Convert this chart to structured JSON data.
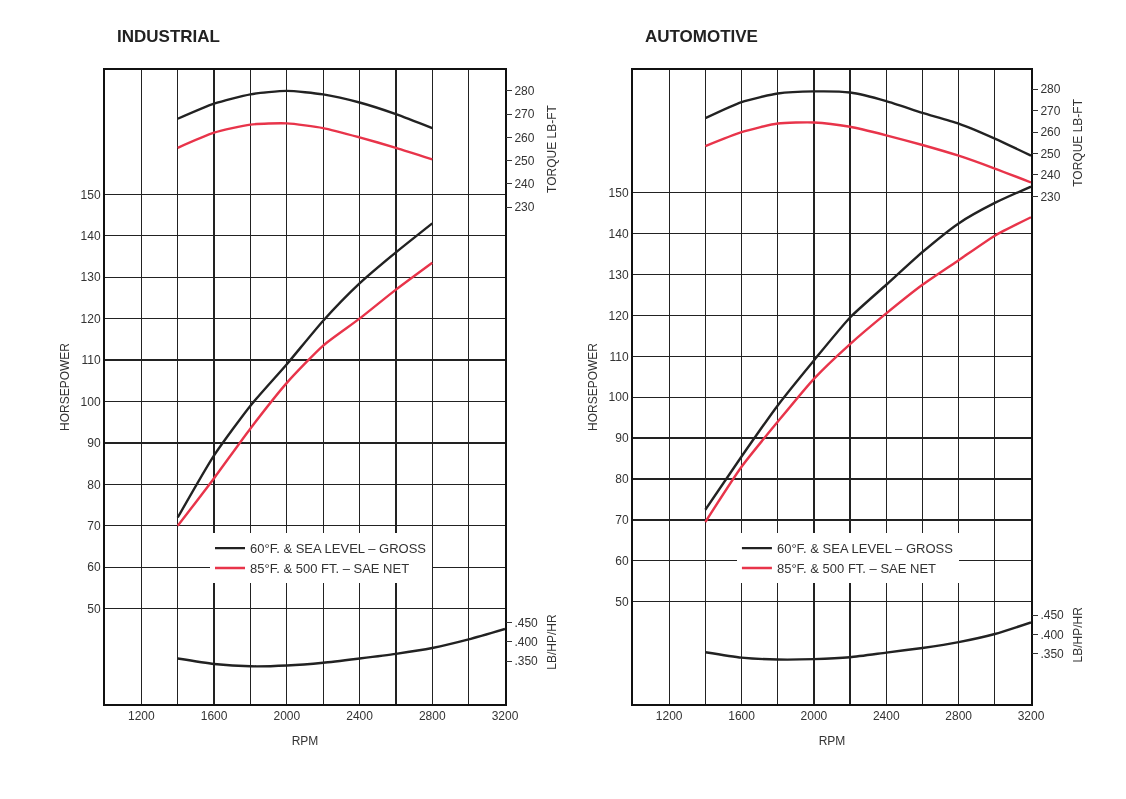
{
  "chart_data": [
    {
      "type": "line",
      "title": "INDUSTRIAL",
      "xlabel": "RPM",
      "ylabel": "HORSEPOWER",
      "y2label": "TORQUE LB-FT",
      "y3label": "LB/HP/HR",
      "x": [
        1400,
        1600,
        1800,
        2000,
        2200,
        2400,
        2600,
        2800
      ],
      "xlim": [
        1000,
        3200
      ],
      "xticks": [
        1200,
        {
          "value": 1400,
          "label": null
        },
        1600,
        {
          "value": 1800,
          "label": null
        },
        2000,
        {
          "value": 2200,
          "label": null
        },
        2400,
        {
          "value": 2600,
          "label": null
        },
        2800,
        {
          "value": 3000,
          "label": null
        },
        3200
      ],
      "ylim": [
        27,
        180
      ],
      "yticks": [
        50,
        60,
        70,
        80,
        90,
        100,
        110,
        120,
        130,
        140,
        150
      ],
      "y2lim": [
        16,
        289
      ],
      "y2ticks": [
        230,
        240,
        250,
        260,
        270,
        280
      ],
      "y3lim": [
        0.24,
        1.87
      ],
      "y3ticks": [
        {
          "value": 0.35,
          "label": ".350"
        },
        {
          "value": 0.4,
          "label": ".400"
        },
        {
          "value": 0.45,
          "label": ".450"
        }
      ],
      "series": [
        {
          "name": "60°F. & SEA LEVEL – GROSS",
          "color": "#222222",
          "values": [
            72,
            87,
            99,
            109,
            119.5,
            128.5,
            136,
            143
          ]
        },
        {
          "name": "85°F. & 500 FT. – SAE NET",
          "color": "#e8344a",
          "values": [
            70,
            81.5,
            93.5,
            104.5,
            113.5,
            120,
            127,
            133.5
          ]
        },
        {
          "color": "#222222",
          "axis": "y2",
          "values": [
            268,
            274.5,
            278.5,
            280,
            278.5,
            275,
            270,
            264
          ]
        },
        {
          "color": "#e8344a",
          "axis": "y2",
          "values": [
            255.5,
            262,
            265.5,
            266,
            264,
            260,
            255.5,
            250.5
          ]
        },
        {
          "color": "#222222",
          "axis": "y3",
          "x": [
            1400,
            1600,
            1800,
            2000,
            2200,
            2400,
            2600,
            2800,
            3000,
            3200
          ],
          "values": [
            0.357,
            0.343,
            0.337,
            0.339,
            0.346,
            0.357,
            0.369,
            0.384,
            0.406,
            0.433
          ]
        }
      ],
      "grid": true,
      "legend": "bottom",
      "marker": "none",
      "line_style": "solid"
    },
    {
      "type": "line",
      "title": "AUTOMOTIVE",
      "xlabel": "RPM",
      "ylabel": "HORSEPOWER",
      "y2label": "TORQUE LB-FT",
      "y3label": "LB/HP/HR",
      "x": [
        1400,
        1600,
        1800,
        2000,
        2200,
        2400,
        2600,
        2800,
        3000,
        3200
      ],
      "xlim": [
        1000,
        3200
      ],
      "xticks": [
        1200,
        {
          "value": 1400,
          "label": null
        },
        1600,
        {
          "value": 1800,
          "label": null
        },
        2000,
        {
          "value": 2200,
          "label": null
        },
        2400,
        {
          "value": 2600,
          "label": null
        },
        2800,
        {
          "value": 3000,
          "label": null
        },
        3200
      ],
      "ylim": [
        25,
        180
      ],
      "yticks": [
        50,
        60,
        70,
        80,
        90,
        100,
        110,
        120,
        130,
        140,
        150
      ],
      "y2lim": [
        -7,
        289
      ],
      "y2ticks": [
        230,
        240,
        250,
        260,
        270,
        280
      ],
      "y3lim": [
        0.22,
        1.86
      ],
      "y3ticks": [
        {
          "value": 0.35,
          "label": ".350"
        },
        {
          "value": 0.4,
          "label": ".400"
        },
        {
          "value": 0.45,
          "label": ".450"
        }
      ],
      "series": [
        {
          "name": "60°F. & SEA LEVEL – GROSS",
          "color": "#222222",
          "values": [
            72.5,
            85.5,
            98,
            109,
            119.5,
            127.5,
            135.5,
            142.5,
            147.5,
            151.5
          ]
        },
        {
          "name": "85°F. & 500 FT. – SAE NET",
          "color": "#e8344a",
          "values": [
            69.5,
            83,
            94,
            104.5,
            113,
            120.5,
            127.5,
            133.5,
            139.5,
            144
          ]
        },
        {
          "color": "#222222",
          "axis": "y2",
          "values": [
            266.5,
            274,
            278,
            279,
            278.5,
            274.5,
            269,
            264,
            257,
            249
          ]
        },
        {
          "color": "#e8344a",
          "axis": "y2",
          "values": [
            253.5,
            260,
            264,
            264.5,
            262.5,
            258.5,
            254,
            249,
            243,
            236.5
          ]
        },
        {
          "color": "#222222",
          "axis": "y3",
          "values": [
            0.354,
            0.34,
            0.335,
            0.336,
            0.341,
            0.353,
            0.365,
            0.38,
            0.401,
            0.431
          ]
        }
      ],
      "grid": true,
      "legend": "bottom",
      "marker": "none",
      "line_style": "solid"
    }
  ]
}
